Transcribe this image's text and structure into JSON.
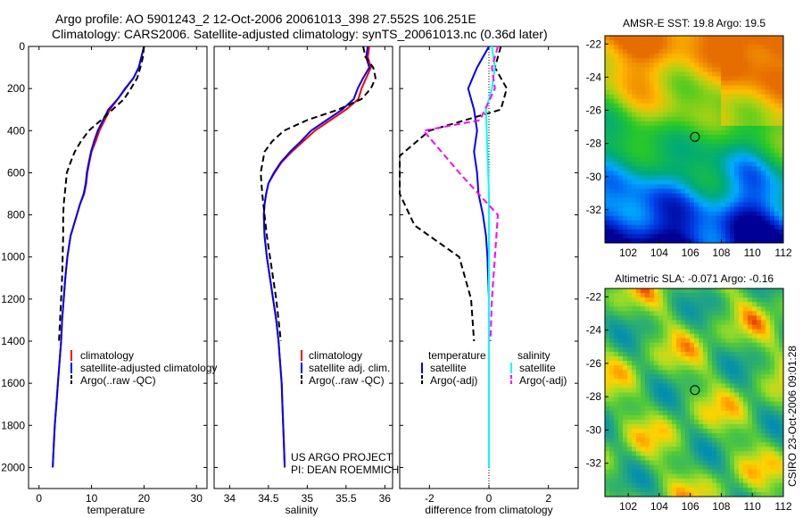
{
  "titles": {
    "line1": "Argo profile: AO 5901243_2 12-Oct-2006 20061013_398 27.552S 106.251E",
    "line2": "Climatology: CARS2006. Satellite-adjusted climatology: synTS_20061013.nc (0.36d later)"
  },
  "colors": {
    "clim": "#ff0000",
    "sat": "#0000ff",
    "argo": "#000000",
    "sat_sal": "#00ffff",
    "argo_sal": "#ff00ff"
  },
  "chart_data": [
    {
      "type": "line",
      "name": "temperature-panel",
      "xlabel": "temperature",
      "ylabel": "",
      "xlim": [
        -2,
        32
      ],
      "ylim": [
        0,
        2100
      ],
      "y_reversed": true,
      "xticks": [
        0,
        10,
        20,
        30
      ],
      "yticks": [
        0,
        200,
        400,
        600,
        800,
        1000,
        1200,
        1400,
        1600,
        1800,
        2000
      ],
      "series": [
        {
          "name": "climatology",
          "color": "#ff0000",
          "dash": "solid",
          "points": [
            [
              20,
              0
            ],
            [
              19.5,
              50
            ],
            [
              19,
              100
            ],
            [
              18,
              150
            ],
            [
              16.5,
              200
            ],
            [
              15,
              250
            ],
            [
              13.5,
              300
            ],
            [
              12.5,
              350
            ],
            [
              11.5,
              400
            ],
            [
              10.8,
              450
            ],
            [
              10,
              500
            ],
            [
              9.6,
              550
            ],
            [
              9.2,
              600
            ],
            [
              9,
              650
            ],
            [
              8.6,
              700
            ],
            [
              7.8,
              750
            ],
            [
              7.2,
              800
            ],
            [
              6.6,
              850
            ],
            [
              6,
              900
            ],
            [
              5.7,
              950
            ],
            [
              5.4,
              1000
            ],
            [
              5,
              1100
            ],
            [
              4.7,
              1200
            ],
            [
              4.4,
              1300
            ],
            [
              4.2,
              1400
            ],
            [
              3.9,
              1500
            ],
            [
              3.6,
              1600
            ],
            [
              3.3,
              1700
            ],
            [
              3,
              1800
            ],
            [
              2.8,
              1900
            ],
            [
              2.6,
              2000
            ]
          ]
        },
        {
          "name": "satellite-adjusted climatology",
          "color": "#0000ff",
          "dash": "solid",
          "points": [
            [
              20,
              0
            ],
            [
              19.5,
              50
            ],
            [
              19,
              100
            ],
            [
              18,
              150
            ],
            [
              16.4,
              200
            ],
            [
              15,
              250
            ],
            [
              13.2,
              300
            ],
            [
              12.2,
              350
            ],
            [
              11.2,
              400
            ],
            [
              10.5,
              450
            ],
            [
              9.9,
              500
            ],
            [
              9.5,
              550
            ],
            [
              9.1,
              600
            ],
            [
              8.9,
              650
            ],
            [
              8.5,
              700
            ],
            [
              7.8,
              750
            ],
            [
              7.2,
              800
            ],
            [
              6.6,
              850
            ],
            [
              6,
              900
            ],
            [
              5.7,
              950
            ],
            [
              5.4,
              1000
            ],
            [
              5,
              1100
            ],
            [
              4.7,
              1200
            ],
            [
              4.4,
              1300
            ],
            [
              4.2,
              1400
            ],
            [
              3.9,
              1500
            ],
            [
              3.6,
              1600
            ],
            [
              3.3,
              1700
            ],
            [
              3,
              1800
            ],
            [
              2.8,
              1900
            ],
            [
              2.6,
              2000
            ]
          ]
        },
        {
          "name": "Argo(..raw -QC)",
          "color": "#000000",
          "dash": "dash",
          "points": [
            [
              20,
              0
            ],
            [
              19.8,
              50
            ],
            [
              19.3,
              100
            ],
            [
              18.7,
              150
            ],
            [
              17.5,
              200
            ],
            [
              16.2,
              250
            ],
            [
              14,
              300
            ],
            [
              11.8,
              350
            ],
            [
              9.5,
              400
            ],
            [
              8,
              450
            ],
            [
              6.8,
              500
            ],
            [
              6,
              550
            ],
            [
              5.3,
              600
            ],
            [
              5.1,
              650
            ],
            [
              4.9,
              700
            ],
            [
              4.7,
              750
            ],
            [
              4.6,
              800
            ],
            [
              4.6,
              900
            ],
            [
              4.5,
              1000
            ],
            [
              4.4,
              1100
            ],
            [
              4.2,
              1200
            ],
            [
              4,
              1300
            ],
            [
              3.8,
              1400
            ]
          ]
        }
      ],
      "legend": [
        "climatology",
        "satellite-adjusted climatology",
        "Argo(..raw -QC)"
      ]
    },
    {
      "type": "line",
      "name": "salinity-panel",
      "xlabel": "salinity",
      "xlim": [
        33.8,
        36.1
      ],
      "ylim": [
        0,
        2100
      ],
      "y_reversed": true,
      "xticks": [
        34,
        34.5,
        35,
        35.5,
        36
      ],
      "series": [
        {
          "name": "climatology",
          "color": "#ff0000",
          "dash": "solid",
          "points": [
            [
              35.8,
              0
            ],
            [
              35.78,
              50
            ],
            [
              35.82,
              100
            ],
            [
              35.76,
              150
            ],
            [
              35.7,
              200
            ],
            [
              35.66,
              250
            ],
            [
              35.5,
              300
            ],
            [
              35.3,
              350
            ],
            [
              35.1,
              400
            ],
            [
              34.95,
              450
            ],
            [
              34.8,
              500
            ],
            [
              34.67,
              550
            ],
            [
              34.58,
              600
            ],
            [
              34.5,
              650
            ],
            [
              34.47,
              700
            ],
            [
              34.45,
              750
            ],
            [
              34.44,
              800
            ],
            [
              34.45,
              900
            ],
            [
              34.48,
              1000
            ],
            [
              34.52,
              1100
            ],
            [
              34.56,
              1200
            ],
            [
              34.6,
              1300
            ],
            [
              34.63,
              1400
            ],
            [
              34.65,
              1500
            ],
            [
              34.67,
              1600
            ],
            [
              34.68,
              1700
            ],
            [
              34.69,
              1800
            ],
            [
              34.7,
              1900
            ],
            [
              34.71,
              2000
            ]
          ]
        },
        {
          "name": "satellite adj. clim.",
          "color": "#0000ff",
          "dash": "solid",
          "points": [
            [
              35.78,
              0
            ],
            [
              35.76,
              50
            ],
            [
              35.8,
              100
            ],
            [
              35.72,
              150
            ],
            [
              35.65,
              200
            ],
            [
              35.6,
              250
            ],
            [
              35.45,
              300
            ],
            [
              35.25,
              350
            ],
            [
              35.05,
              400
            ],
            [
              34.92,
              450
            ],
            [
              34.78,
              500
            ],
            [
              34.66,
              550
            ],
            [
              34.57,
              600
            ],
            [
              34.5,
              650
            ],
            [
              34.47,
              700
            ],
            [
              34.45,
              750
            ],
            [
              34.44,
              800
            ],
            [
              34.45,
              900
            ],
            [
              34.48,
              1000
            ],
            [
              34.52,
              1100
            ],
            [
              34.56,
              1200
            ],
            [
              34.6,
              1300
            ],
            [
              34.63,
              1400
            ],
            [
              34.65,
              1500
            ],
            [
              34.67,
              1600
            ],
            [
              34.68,
              1700
            ],
            [
              34.69,
              1800
            ],
            [
              34.7,
              1900
            ],
            [
              34.71,
              2000
            ]
          ]
        },
        {
          "name": "Argo(..raw -QC)",
          "color": "#000000",
          "dash": "dash",
          "points": [
            [
              35.72,
              0
            ],
            [
              35.75,
              50
            ],
            [
              35.85,
              100
            ],
            [
              35.88,
              150
            ],
            [
              35.82,
              200
            ],
            [
              35.7,
              250
            ],
            [
              35.4,
              300
            ],
            [
              35,
              350
            ],
            [
              34.7,
              400
            ],
            [
              34.55,
              450
            ],
            [
              34.45,
              500
            ],
            [
              34.4,
              600
            ],
            [
              34.42,
              700
            ],
            [
              34.45,
              800
            ],
            [
              34.48,
              900
            ],
            [
              34.52,
              1000
            ],
            [
              34.56,
              1100
            ],
            [
              34.6,
              1200
            ],
            [
              34.63,
              1300
            ],
            [
              34.66,
              1400
            ]
          ]
        }
      ],
      "legend": [
        "climatology",
        "satellite adj. clim.",
        "Argo(..raw -QC)"
      ],
      "credits": [
        "US ARGO PROJECT",
        "PI: DEAN ROEMMICH"
      ]
    },
    {
      "type": "line",
      "name": "difference-panel",
      "xlabel": "difference from climatology",
      "xlim": [
        -3,
        3
      ],
      "ylim": [
        0,
        2100
      ],
      "y_reversed": true,
      "xticks": [
        -2,
        0,
        2
      ],
      "series": [
        {
          "name": "temperature satellite",
          "color": "#0000ff",
          "dash": "solid",
          "points": [
            [
              0,
              0
            ],
            [
              -0.4,
              100
            ],
            [
              -0.7,
              200
            ],
            [
              -0.5,
              300
            ],
            [
              -0.4,
              400
            ],
            [
              -0.5,
              500
            ],
            [
              -0.4,
              600
            ],
            [
              -0.35,
              700
            ],
            [
              -0.2,
              800
            ],
            [
              -0.1,
              900
            ],
            [
              -0.05,
              1000
            ],
            [
              0,
              1200
            ],
            [
              0,
              2000
            ]
          ]
        },
        {
          "name": "temperature Argo(-adj)",
          "color": "#000000",
          "dash": "dash",
          "points": [
            [
              0.4,
              0
            ],
            [
              0.2,
              100
            ],
            [
              0.6,
              200
            ],
            [
              0.4,
              300
            ],
            [
              -2,
              400
            ],
            [
              -3,
              520
            ],
            [
              -3,
              700
            ],
            [
              -2.5,
              850
            ],
            [
              -1,
              1000
            ],
            [
              -0.6,
              1200
            ],
            [
              -0.5,
              1400
            ]
          ]
        },
        {
          "name": "salinity satellite",
          "color": "#00ffff",
          "dash": "solid",
          "points": [
            [
              0.1,
              0
            ],
            [
              0.2,
              100
            ],
            [
              0.1,
              200
            ],
            [
              -0.1,
              300
            ],
            [
              -0.05,
              500
            ],
            [
              0,
              700
            ],
            [
              0,
              2000
            ]
          ]
        },
        {
          "name": "salinity Argo(-adj)",
          "color": "#ff00ff",
          "dash": "dash",
          "points": [
            [
              0.3,
              0
            ],
            [
              0.1,
              100
            ],
            [
              0.2,
              200
            ],
            [
              -0.3,
              350
            ],
            [
              -2.2,
              400
            ],
            [
              -1,
              600
            ],
            [
              0.3,
              800
            ],
            [
              0.2,
              1000
            ],
            [
              0.1,
              1200
            ],
            [
              0.05,
              1400
            ]
          ]
        }
      ],
      "legend_headers": [
        "temperature",
        "salinity"
      ],
      "legend_left": [
        "satellite",
        "Argo(-adj)"
      ],
      "legend_right": [
        "satellite",
        "Argo(-adj)"
      ]
    },
    {
      "type": "heatmap",
      "name": "sst-map",
      "title": "AMSR-E SST: 19.8 Argo: 19.5",
      "xlim": [
        100.5,
        112
      ],
      "ylim": [
        -34,
        -21.5
      ],
      "xticks": [
        102,
        104,
        106,
        108,
        110,
        112
      ],
      "yticks": [
        -22,
        -24,
        -26,
        -28,
        -30,
        -32
      ],
      "marker": {
        "lon": 106.3,
        "lat": -27.6
      }
    },
    {
      "type": "heatmap",
      "name": "sla-map",
      "title": "Altimetric SLA: -0.071 Argo: -0.16",
      "xlim": [
        100.5,
        112
      ],
      "ylim": [
        -34,
        -21.5
      ],
      "xticks": [
        102,
        104,
        106,
        108,
        110,
        112
      ],
      "yticks": [
        -22,
        -24,
        -26,
        -28,
        -30,
        -32
      ],
      "marker": {
        "lon": 106.3,
        "lat": -27.6
      }
    }
  ],
  "stamp": "CSIRO 23-Oct-2006 09:01:28"
}
